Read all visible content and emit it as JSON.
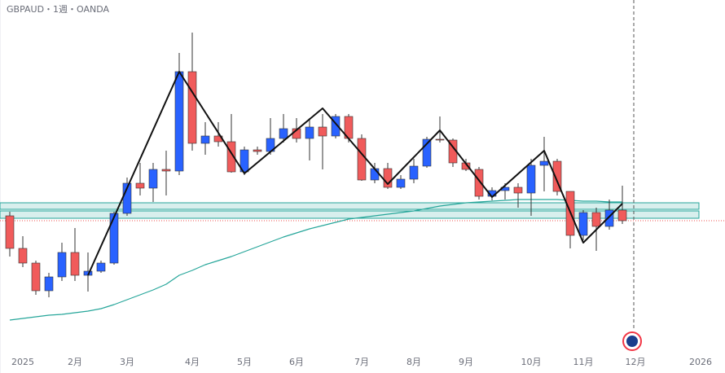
{
  "chart_data": {
    "type": "candlestick",
    "title": "GBPAUD・1週・OANDA",
    "categories": [
      null,
      "2025",
      null,
      null,
      null,
      "2月",
      null,
      null,
      null,
      "3月",
      null,
      null,
      null,
      null,
      "4月",
      null,
      null,
      null,
      "5月",
      null,
      null,
      null,
      "6月",
      null,
      null,
      null,
      null,
      "7月",
      null,
      null,
      null,
      "8月",
      null,
      null,
      null,
      "9月",
      null,
      null,
      null,
      null,
      "10月",
      null,
      null,
      null,
      "11月",
      null,
      null,
      null,
      "12月",
      null,
      null,
      null,
      null,
      "2026"
    ],
    "open": [
      2.0375,
      2.0175,
      2.0085,
      1.9915,
      2.0,
      2.015,
      2.001,
      2.0035,
      2.0085,
      2.039,
      2.0575,
      2.0545,
      2.066,
      2.065,
      2.126,
      2.082,
      2.0865,
      2.083,
      2.0645,
      2.078,
      2.077,
      2.085,
      2.091,
      2.085,
      2.092,
      2.0865,
      2.0985,
      2.085,
      2.0595,
      2.0665,
      2.055,
      2.06,
      2.068,
      2.0845,
      2.084,
      2.07,
      2.066,
      2.0495,
      2.053,
      2.055,
      2.0515,
      2.0685,
      2.071,
      2.0525,
      2.0255,
      2.0395,
      2.031,
      2.041,
      null,
      null,
      null,
      null,
      null,
      null
    ],
    "high": [
      2.04,
      2.025,
      2.01,
      2.0025,
      2.021,
      2.03,
      2.015,
      2.01,
      2.04,
      2.061,
      2.07,
      2.07,
      2.0775,
      2.1375,
      2.15,
      2.095,
      2.095,
      2.1,
      2.08,
      2.08,
      2.0975,
      2.1,
      2.0975,
      2.0975,
      2.1,
      2.1,
      2.1,
      2.0875,
      2.07,
      2.07,
      2.0625,
      2.0725,
      2.086,
      2.0985,
      2.085,
      2.0725,
      2.0675,
      2.055,
      2.0575,
      2.0575,
      2.0725,
      2.086,
      2.0725,
      2.0525,
      2.041,
      2.0425,
      2.0475,
      2.056,
      null,
      null,
      null,
      null,
      null,
      null
    ],
    "low": [
      2.0125,
      2.006,
      1.989,
      1.9875,
      1.9975,
      1.9975,
      1.991,
      2.0025,
      2.0075,
      2.0375,
      2.05,
      2.046,
      2.05,
      2.0625,
      2.0775,
      2.075,
      2.08,
      2.064,
      2.0625,
      2.075,
      2.075,
      2.0825,
      2.0825,
      2.0715,
      2.066,
      2.085,
      2.0825,
      2.059,
      2.0575,
      2.054,
      2.054,
      2.0575,
      2.067,
      2.0825,
      2.0675,
      2.065,
      2.0475,
      2.047,
      2.0475,
      2.0425,
      2.0375,
      2.0525,
      2.05,
      2.0175,
      2.0225,
      2.016,
      2.029,
      2.0325,
      null,
      null,
      null,
      null,
      null,
      null
    ],
    "close": [
      2.0175,
      2.0085,
      1.9915,
      2.0,
      2.015,
      2.001,
      2.0035,
      2.0085,
      2.039,
      2.0575,
      2.0545,
      2.066,
      2.065,
      2.126,
      2.082,
      2.0865,
      2.083,
      2.0645,
      2.078,
      2.077,
      2.085,
      2.091,
      2.085,
      2.092,
      2.0865,
      2.0985,
      2.085,
      2.0595,
      2.0665,
      2.055,
      2.06,
      2.068,
      2.0845,
      2.084,
      2.07,
      2.066,
      2.0495,
      2.053,
      2.055,
      2.0515,
      2.0685,
      2.071,
      2.0525,
      2.0255,
      2.0395,
      2.031,
      2.041,
      2.0345,
      null,
      null,
      null,
      null,
      null,
      null
    ],
    "up_color": "#2962ff",
    "down_color": "#f05b5b",
    "moving_average": {
      "color": "#26a69a",
      "values": [
        1.9735,
        1.9745,
        1.9755,
        1.9765,
        1.977,
        1.978,
        1.979,
        1.9805,
        1.983,
        1.986,
        1.989,
        1.992,
        1.9955,
        2.001,
        2.004,
        2.0075,
        2.01,
        2.0125,
        2.0155,
        2.0185,
        2.0215,
        2.0245,
        2.027,
        2.0295,
        2.0315,
        2.0335,
        2.0355,
        2.0365,
        2.0375,
        2.0385,
        2.0395,
        2.0405,
        2.042,
        2.0435,
        2.0445,
        2.0455,
        2.046,
        2.0465,
        2.047,
        2.0475,
        2.0475,
        2.0475,
        2.0475,
        2.047,
        2.0465,
        2.0465,
        2.046,
        2.046,
        null,
        null,
        null,
        null,
        null,
        null
      ]
    },
    "zigzag": {
      "color": "#111111",
      "x": [
        6,
        13,
        18,
        24,
        29,
        33,
        37,
        41,
        44,
        47
      ],
      "values": [
        2.001,
        2.126,
        2.0635,
        2.1035,
        2.057,
        2.09,
        2.049,
        2.0775,
        2.021,
        2.045
      ]
    },
    "zones": [
      {
        "from": 2.0455,
        "to": 2.0415
      },
      {
        "from": 2.0405,
        "to": 2.036
      }
    ],
    "zone_color": "#26a69a",
    "price_line": 2.0345,
    "price_line_color": "#ef5350",
    "ylim": [
      1.955,
      2.17
    ]
  }
}
